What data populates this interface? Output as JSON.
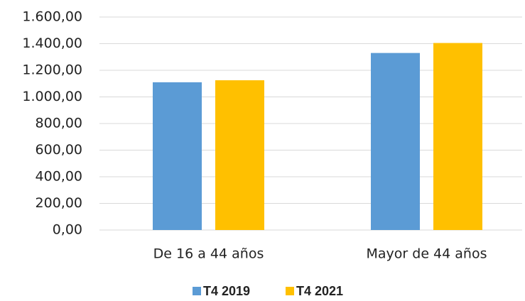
{
  "chart_data": {
    "type": "bar",
    "categories": [
      "De 16 a 44 años",
      "Mayor de 44 años"
    ],
    "series": [
      {
        "name": "T4 2019",
        "color": "#5b9bd5",
        "values": [
          1110,
          1330
        ]
      },
      {
        "name": "T4 2021",
        "color": "#ffc000",
        "values": [
          1125,
          1405
        ]
      }
    ],
    "ylim": [
      0,
      1600
    ],
    "yticks": [
      {
        "value": 0,
        "label": "0,00"
      },
      {
        "value": 200,
        "label": "200,00"
      },
      {
        "value": 400,
        "label": "400,00"
      },
      {
        "value": 600,
        "label": "600,00"
      },
      {
        "value": 800,
        "label": "800,00"
      },
      {
        "value": 1000,
        "label": "1.000,00"
      },
      {
        "value": 1200,
        "label": "1.200,00"
      },
      {
        "value": 1400,
        "label": "1.400,00"
      },
      {
        "value": 1600,
        "label": "1.600,00"
      }
    ],
    "grid": true,
    "legend": "bottom"
  }
}
